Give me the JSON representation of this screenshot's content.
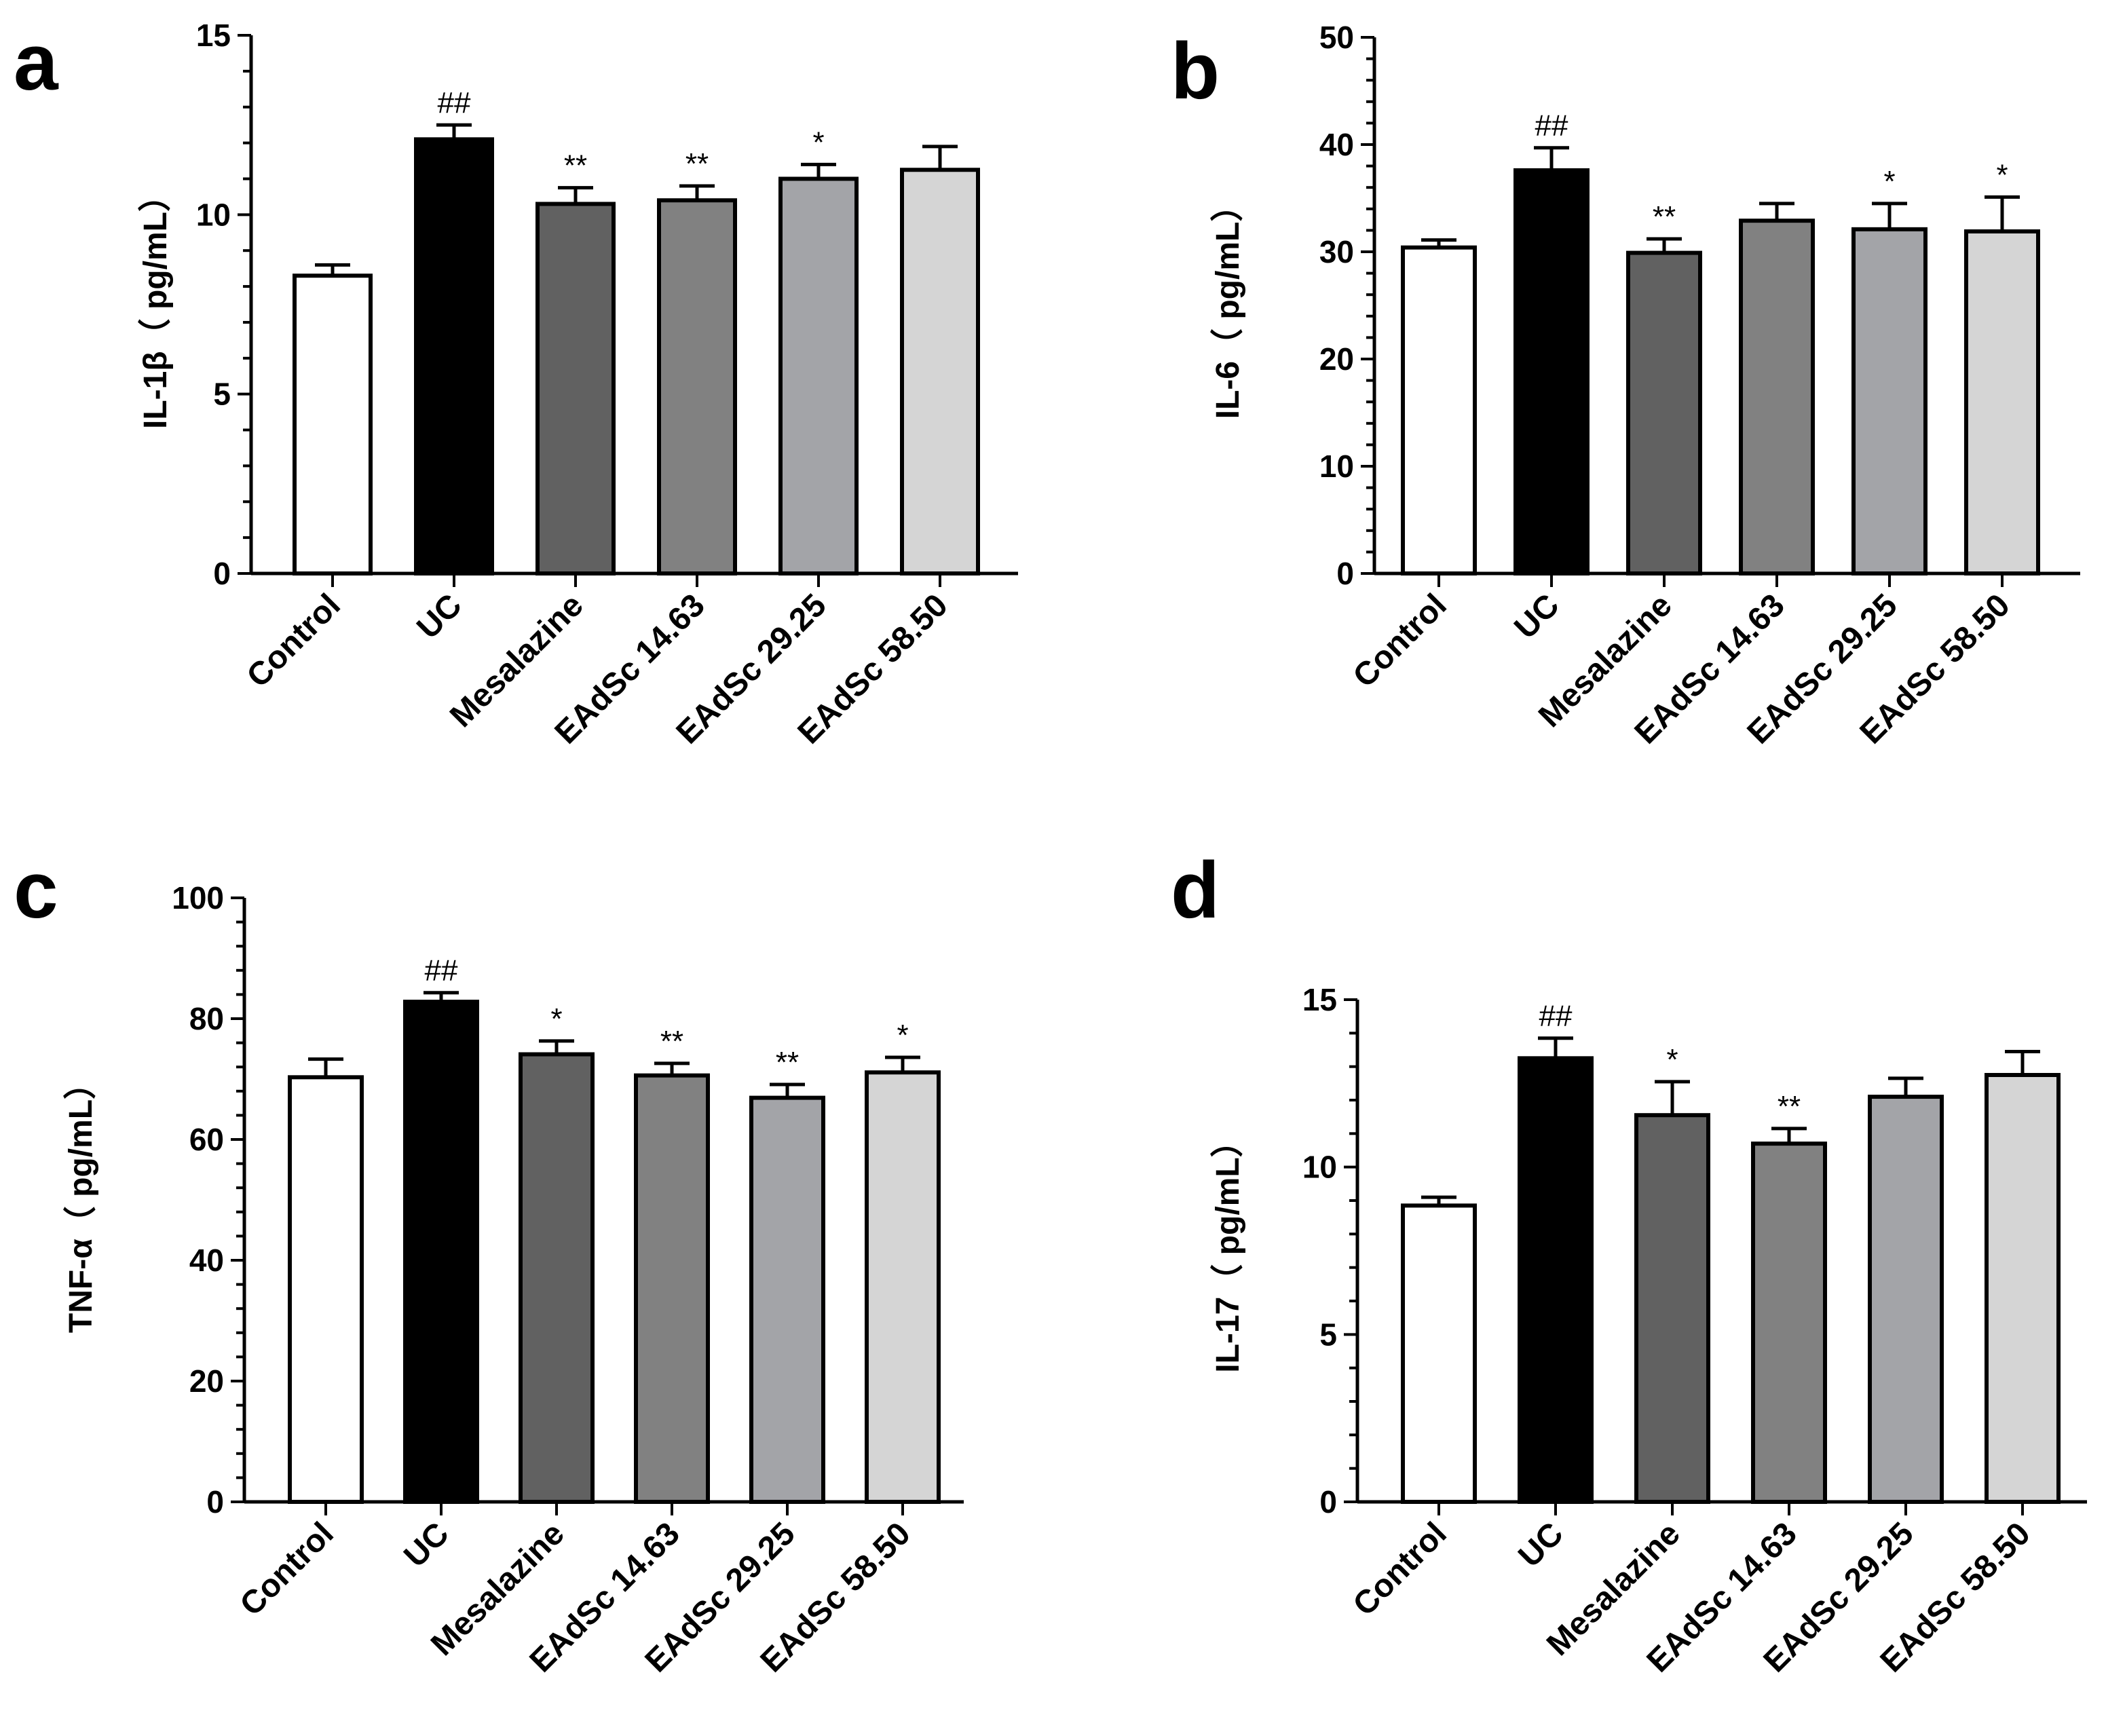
{
  "chart_data": [
    {
      "panel": "a",
      "type": "bar",
      "ylabel": "IL-1β（ pg/mL）",
      "ylim": [
        0,
        15
      ],
      "yticks": [
        0,
        5,
        10,
        15
      ],
      "categories": [
        "Control",
        "UC",
        "Mesalazine",
        "EAdSc 14.63",
        "EAdSc 29.25",
        "EAdSc 58.50"
      ],
      "values": [
        8.3,
        12.1,
        10.3,
        10.4,
        11.0,
        11.25
      ],
      "errors": [
        0.3,
        0.4,
        0.45,
        0.4,
        0.4,
        0.65
      ],
      "annotations": [
        "",
        "##",
        "**",
        "**",
        "*",
        ""
      ],
      "colors": [
        "#ffffff",
        "#000000",
        "#616161",
        "#818181",
        "#a3a4a8",
        "#d5d5d5"
      ]
    },
    {
      "panel": "b",
      "type": "bar",
      "ylabel": "IL-6（ pg/mL）",
      "ylim": [
        0,
        50
      ],
      "yticks": [
        0,
        10,
        20,
        30,
        40,
        50
      ],
      "categories": [
        "Control",
        "UC",
        "Mesalazine",
        "EAdSc 14.63",
        "EAdSc 29.25",
        "EAdSc 58.50"
      ],
      "values": [
        30.4,
        37.6,
        29.9,
        32.9,
        32.1,
        31.9
      ],
      "errors": [
        0.7,
        2.1,
        1.3,
        1.6,
        2.4,
        3.2
      ],
      "annotations": [
        "",
        "##",
        "**",
        "",
        "*",
        "*"
      ],
      "colors": [
        "#ffffff",
        "#000000",
        "#616161",
        "#818181",
        "#a3a4a8",
        "#d5d5d5"
      ]
    },
    {
      "panel": "c",
      "type": "bar",
      "ylabel": "TNF-α（ pg/mL）",
      "ylim": [
        0,
        100
      ],
      "yticks": [
        0,
        20,
        40,
        60,
        80,
        100
      ],
      "categories": [
        "Control",
        "UC",
        "Mesalazine",
        "EAdSc 14.63",
        "EAdSc 29.25",
        "EAdSc 58.50"
      ],
      "values": [
        70.3,
        82.8,
        74.1,
        70.6,
        66.9,
        71.1
      ],
      "errors": [
        3.0,
        1.5,
        2.2,
        2.0,
        2.2,
        2.5
      ],
      "annotations": [
        "",
        "##",
        "*",
        "**",
        "**",
        "*"
      ],
      "colors": [
        "#ffffff",
        "#000000",
        "#616161",
        "#818181",
        "#a3a4a8",
        "#d5d5d5"
      ]
    },
    {
      "panel": "d",
      "type": "bar",
      "ylabel": "IL-17（ pg/mL）",
      "ylim": [
        0,
        15
      ],
      "yticks": [
        0,
        5,
        10,
        15
      ],
      "categories": [
        "Control",
        "UC",
        "Mesalazine",
        "EAdSc 14.63",
        "EAdSc 29.25",
        "EAdSc 58.50"
      ],
      "values": [
        8.85,
        13.25,
        11.55,
        10.7,
        12.1,
        12.75
      ],
      "errors": [
        0.25,
        0.6,
        1.0,
        0.45,
        0.55,
        0.7
      ],
      "annotations": [
        "",
        "##",
        "*",
        "**",
        "",
        ""
      ],
      "colors": [
        "#ffffff",
        "#000000",
        "#616161",
        "#818181",
        "#a3a4a8",
        "#d5d5d5"
      ]
    }
  ]
}
